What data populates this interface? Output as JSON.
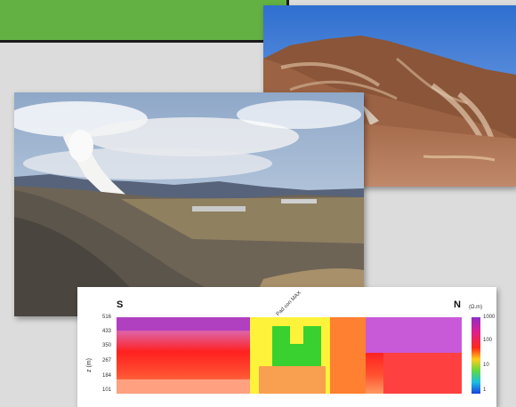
{
  "resistivity": {
    "south_label": "S",
    "north_label": "N",
    "y_axis_label": "z (m)",
    "depth_ticks": [
      "516",
      "433",
      "350",
      "267",
      "184",
      "101"
    ],
    "scale_unit": "(Ω.m)",
    "scale_ticks": [
      "1000",
      "100",
      "10",
      "1"
    ],
    "annotation": "Pad con MAX"
  }
}
